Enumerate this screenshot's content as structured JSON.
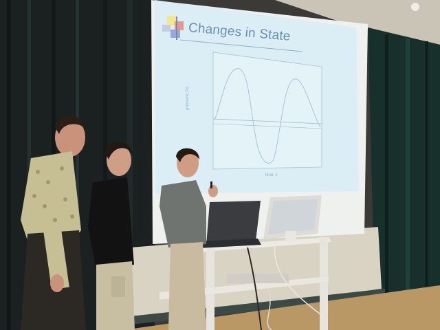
{
  "slide": {
    "title": "Changes in State",
    "ylabel": "pressure, Pa",
    "xlabel": "time, s"
  },
  "colors": {
    "curtain": "#1b2523",
    "screen": "#d9ecf3",
    "screen_border": "#eef3f4",
    "title": "#6a8fb7",
    "floor": "#b99b6a",
    "wall": "#d9d6cc",
    "cart": "#e8e6de",
    "laptop": "#3a3b3e",
    "monitor": "#dcdcd8"
  }
}
